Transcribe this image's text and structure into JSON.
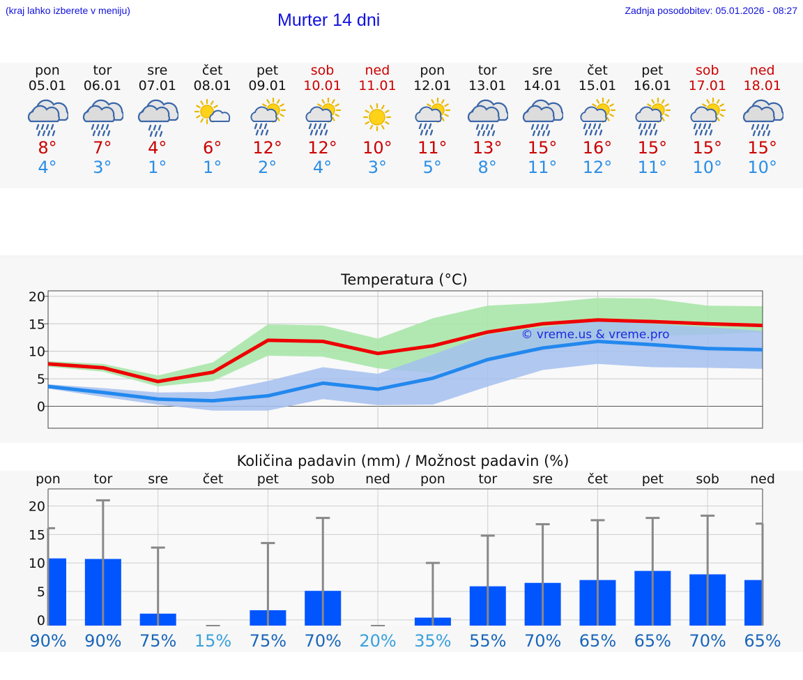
{
  "header": {
    "location_hint": "(kraj lahko izberete v meniju)",
    "title": "Murter 14 dni",
    "updated": "Zadnja posodobitev: 05.01.2026 - 08:27"
  },
  "days": [
    {
      "name": "pon",
      "date": "05.01",
      "weekend": false,
      "icon": "rain-cloud-icon",
      "tmax": "8°",
      "tmin": "4°"
    },
    {
      "name": "tor",
      "date": "06.01",
      "weekend": false,
      "icon": "rain-cloud-icon",
      "tmax": "7°",
      "tmin": "3°"
    },
    {
      "name": "sre",
      "date": "07.01",
      "weekend": false,
      "icon": "light-rain-cloud-icon",
      "tmax": "4°",
      "tmin": "1°"
    },
    {
      "name": "čet",
      "date": "08.01",
      "weekend": false,
      "icon": "sun-cloud-icon",
      "tmax": "6°",
      "tmin": "1°"
    },
    {
      "name": "pet",
      "date": "09.01",
      "weekend": false,
      "icon": "sun-rain-icon",
      "tmax": "12°",
      "tmin": "2°"
    },
    {
      "name": "sob",
      "date": "10.01",
      "weekend": true,
      "icon": "sun-heavy-rain-icon",
      "tmax": "12°",
      "tmin": "4°"
    },
    {
      "name": "ned",
      "date": "11.01",
      "weekend": true,
      "icon": "sun-icon",
      "tmax": "10°",
      "tmin": "3°"
    },
    {
      "name": "pon",
      "date": "12.01",
      "weekend": false,
      "icon": "sun-rain-icon",
      "tmax": "11°",
      "tmin": "5°"
    },
    {
      "name": "tor",
      "date": "13.01",
      "weekend": false,
      "icon": "rain-cloud-icon",
      "tmax": "13°",
      "tmin": "8°"
    },
    {
      "name": "sre",
      "date": "14.01",
      "weekend": false,
      "icon": "rain-cloud-icon",
      "tmax": "15°",
      "tmin": "11°"
    },
    {
      "name": "čet",
      "date": "15.01",
      "weekend": false,
      "icon": "sun-heavy-rain-icon",
      "tmax": "16°",
      "tmin": "12°"
    },
    {
      "name": "pet",
      "date": "16.01",
      "weekend": false,
      "icon": "sun-heavy-rain-icon",
      "tmax": "15°",
      "tmin": "11°"
    },
    {
      "name": "sob",
      "date": "17.01",
      "weekend": true,
      "icon": "sun-heavy-rain-icon",
      "tmax": "15°",
      "tmin": "10°"
    },
    {
      "name": "ned",
      "date": "18.01",
      "weekend": true,
      "icon": "rain-cloud-icon",
      "tmax": "15°",
      "tmin": "10°"
    }
  ],
  "colors": {
    "max_line": "#ee0000",
    "min_line": "#2288ee",
    "max_band": "#a8e6a8",
    "min_band": "#a4c0f0",
    "overlap_band": "#80c4b4",
    "precip_bar": "#0055ff",
    "error_bar": "#888888",
    "prob_high": "#1a66b8",
    "prob_low": "#39a0dc"
  },
  "chart_data": [
    {
      "type": "line",
      "title": "Temperatura (°C)",
      "watermark": "© vreme.us & vreme.pro",
      "x": [
        1,
        2,
        3,
        4,
        5,
        6,
        7,
        8,
        9,
        10,
        11,
        12,
        13,
        14
      ],
      "ylim": [
        -4,
        21
      ],
      "yticks": [
        0,
        5,
        10,
        15,
        20
      ],
      "series": [
        {
          "name": "max",
          "values": [
            7.7,
            7.0,
            4.5,
            6.2,
            12.0,
            11.8,
            9.6,
            11.0,
            13.5,
            15.0,
            15.7,
            15.4,
            15.0,
            14.7
          ],
          "band_low": [
            7.2,
            6.3,
            3.6,
            4.6,
            9.2,
            9.0,
            6.9,
            6.0,
            8.3,
            10.8,
            12.3,
            12.8,
            13.0,
            13.5
          ],
          "band_high": [
            8.2,
            7.7,
            5.6,
            8.0,
            14.9,
            14.7,
            12.3,
            16.0,
            18.3,
            18.8,
            19.7,
            19.6,
            18.3,
            18.2
          ]
        },
        {
          "name": "min",
          "values": [
            3.6,
            2.5,
            1.3,
            1.0,
            1.9,
            4.2,
            3.1,
            5.1,
            8.5,
            10.6,
            11.8,
            11.2,
            10.5,
            10.3
          ],
          "band_low": [
            3.2,
            1.7,
            0.3,
            -0.8,
            -0.8,
            1.3,
            0.2,
            0.3,
            3.6,
            6.6,
            7.7,
            7.1,
            7.0,
            6.8
          ],
          "band_high": [
            4.0,
            3.3,
            2.5,
            2.6,
            4.6,
            7.1,
            5.9,
            9.4,
            13.1,
            14.4,
            15.6,
            15.0,
            14.4,
            13.7
          ]
        }
      ]
    },
    {
      "type": "bar",
      "title": "Količina padavin (mm) / Možnost padavin (%)",
      "categories": [
        "pon",
        "tor",
        "sre",
        "čet",
        "pet",
        "sob",
        "ned",
        "pon",
        "tor",
        "sre",
        "čet",
        "pet",
        "sob",
        "ned"
      ],
      "ylim": [
        -1,
        23
      ],
      "yticks": [
        0,
        5,
        10,
        15,
        20
      ],
      "values": [
        10.8,
        10.7,
        1.1,
        0,
        1.7,
        5.1,
        0,
        0.4,
        5.9,
        6.5,
        7.0,
        8.6,
        8.0,
        7.0
      ],
      "error_high": [
        16.1,
        21.0,
        12.7,
        0,
        13.5,
        17.9,
        0,
        10.0,
        14.8,
        16.8,
        17.5,
        17.9,
        18.3,
        16.9
      ],
      "probability": [
        "90%",
        "90%",
        "75%",
        "15%",
        "75%",
        "70%",
        "20%",
        "35%",
        "55%",
        "70%",
        "65%",
        "65%",
        "70%",
        "65%"
      ]
    }
  ]
}
